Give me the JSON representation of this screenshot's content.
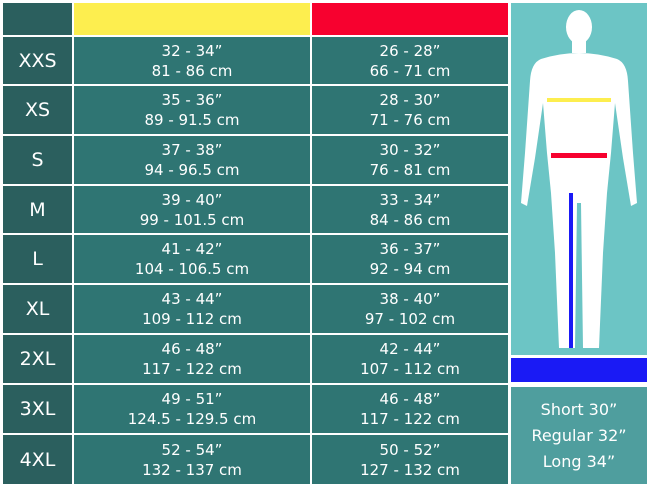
{
  "colors": {
    "chest": "#fdee4f",
    "waist": "#f7012f",
    "inseam": "#1a1af5"
  },
  "rows": [
    {
      "size": "XXS",
      "chest_in": "32 - 34”",
      "chest_cm": "81 - 86 cm",
      "waist_in": "26 - 28”",
      "waist_cm": "66 - 71 cm"
    },
    {
      "size": "XS",
      "chest_in": "35 - 36”",
      "chest_cm": "89 - 91.5 cm",
      "waist_in": "28 - 30”",
      "waist_cm": "71 - 76 cm"
    },
    {
      "size": "S",
      "chest_in": "37 - 38”",
      "chest_cm": "94 - 96.5 cm",
      "waist_in": "30 - 32”",
      "waist_cm": "76 - 81 cm"
    },
    {
      "size": "M",
      "chest_in": "39 - 40”",
      "chest_cm": "99 - 101.5 cm",
      "waist_in": "33 - 34”",
      "waist_cm": "84 - 86 cm"
    },
    {
      "size": "L",
      "chest_in": "41 - 42”",
      "chest_cm": "104 - 106.5 cm",
      "waist_in": "36 - 37”",
      "waist_cm": "92 - 94 cm"
    },
    {
      "size": "XL",
      "chest_in": "43 - 44”",
      "chest_cm": "109 - 112 cm",
      "waist_in": "38 - 40”",
      "waist_cm": "97 - 102 cm"
    },
    {
      "size": "2XL",
      "chest_in": "46 - 48”",
      "chest_cm": "117 - 122 cm",
      "waist_in": "42 - 44”",
      "waist_cm": "107 - 112 cm"
    },
    {
      "size": "3XL",
      "chest_in": "49 - 51”",
      "chest_cm": "124.5 - 129.5 cm",
      "waist_in": "46 - 48”",
      "waist_cm": "117 - 122 cm"
    },
    {
      "size": "4XL",
      "chest_in": "52 - 54”",
      "chest_cm": "132 - 137 cm",
      "waist_in": "50 - 52”",
      "waist_cm": "127 - 132 cm"
    }
  ],
  "inseam": [
    "Short 30”",
    "Regular 32”",
    "Long 34”"
  ]
}
